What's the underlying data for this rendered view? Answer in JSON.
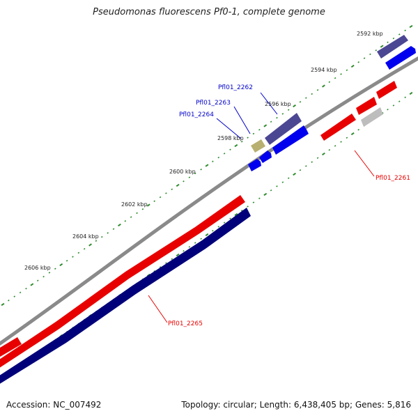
{
  "title": "Pseudomonas fluorescens Pf0-1, complete genome",
  "footer": {
    "accession": "Accession: NC_007492",
    "summary": "Topology: circular; Length: 6,438,405 bp; Genes: 5,816"
  },
  "colors": {
    "backbone": "#8a8a8a",
    "tick": "#2e8b2e",
    "forward_gene": "#e80000",
    "reverse_gene": "#0000ee",
    "reverse_gene_dark": "#00007a",
    "purple_gene": "#4b4793",
    "gray_gene": "#bdbdbd",
    "khaki_gene": "#b8b070",
    "forward_label": "#e80000",
    "reverse_label": "#0000cc"
  },
  "map": {
    "kbp_labels": [
      "2592 kbp",
      "2594 kbp",
      "2596 kbp",
      "2598 kbp",
      "2600 kbp",
      "2602 kbp",
      "2604 kbp",
      "2606 kbp"
    ],
    "gene_labels": {
      "pfl01_2261": "Pfl01_2261",
      "pfl01_2262": "Pfl01_2262",
      "pfl01_2263": "Pfl01_2263",
      "pfl01_2264": "Pfl01_2264",
      "pfl01_2265": "Pfl01_2265"
    }
  }
}
